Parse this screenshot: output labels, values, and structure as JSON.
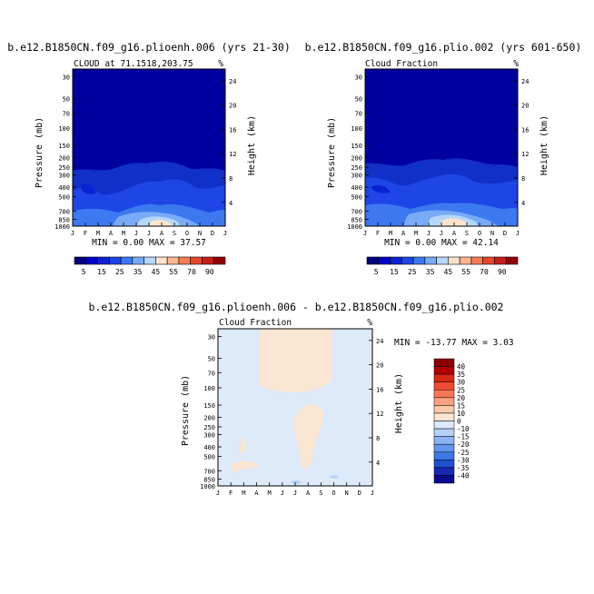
{
  "colors": {
    "scale_abs": [
      "#00007f",
      "#0000c8",
      "#0a23d2",
      "#1e46e6",
      "#3c78f0",
      "#78aaf5",
      "#b4d7fa",
      "#fde3cc",
      "#fcb88f",
      "#f87d55",
      "#e8452b",
      "#c81e14",
      "#960000"
    ],
    "scale_diff": [
      "#0a0a8c",
      "#1428b4",
      "#1e50d2",
      "#3c78e6",
      "#6496f0",
      "#8cb4f5",
      "#b4d2fa",
      "#dceafa",
      "#fae6d2",
      "#fcc8a5",
      "#fca082",
      "#f8785a",
      "#f04b32",
      "#dc2814",
      "#b40000",
      "#8c0000"
    ],
    "plot_background": "#00009f",
    "diff_background": "#dceafa"
  },
  "panel_top_left": {
    "title": "b.e12.B1850CN.f09_g16.plioenh.006 (yrs 21-30)",
    "subtitle_left": "CLOUD at 71.1518,203.75",
    "units": "%",
    "minmax": "MIN =   0.00 MAX =  37.57"
  },
  "panel_top_right": {
    "title": "b.e12.B1850CN.f09_g16.plio.002 (yrs 601-650)",
    "subtitle_left": "Cloud Fraction",
    "units": "%",
    "minmax": "MIN =   0.00 MAX =  42.14"
  },
  "panel_bottom": {
    "title": "b.e12.B1850CN.f09_g16.plioenh.006 - b.e12.B1850CN.f09_g16.plio.002",
    "subtitle_left": "Cloud Fraction",
    "units": "%",
    "minmax": "MIN = -13.77 MAX =   3.03"
  },
  "axes": {
    "ylabel_left": "Pressure (mb)",
    "ylabel_right": "Height (km)",
    "pressure_ticks": [
      "30",
      "50",
      "70",
      "100",
      "150",
      "200",
      "250",
      "300",
      "400",
      "500",
      "700",
      "850",
      "1000"
    ],
    "height_ticks": [
      "24",
      "20",
      "16",
      "12",
      "8",
      "4"
    ],
    "month_ticks": [
      "J",
      "F",
      "M",
      "A",
      "M",
      "J",
      "J",
      "A",
      "S",
      "O",
      "N",
      "D",
      "J"
    ]
  },
  "colorbar_abs_labels": [
    "5",
    "15",
    "25",
    "35",
    "45",
    "55",
    "70",
    "90"
  ],
  "colorbar_diff_labels": [
    "40",
    "35",
    "30",
    "25",
    "20",
    "15",
    "10",
    "0",
    "-10",
    "-15",
    "-20",
    "-25",
    "-30",
    "-35",
    "-40"
  ],
  "chart_data": [
    {
      "type": "heatmap",
      "title": "b.e12.B1850CN.f09_g16.plioenh.006 (yrs 21-30)",
      "subtitle": "CLOUD at 71.1518,203.75",
      "xlabel": "",
      "ylabel": "Pressure (mb)",
      "y2label": "Height (km)",
      "x": [
        "J",
        "F",
        "M",
        "A",
        "M",
        "J",
        "J",
        "A",
        "S",
        "O",
        "N",
        "D",
        "J"
      ],
      "y_pressure_mb": [
        30,
        50,
        70,
        100,
        150,
        200,
        250,
        300,
        400,
        500,
        700,
        850,
        1000
      ],
      "ylim": [
        1000,
        25
      ],
      "color_levels": [
        5,
        10,
        15,
        20,
        25,
        30,
        35,
        40,
        45,
        50,
        55,
        70,
        90
      ],
      "min": 0.0,
      "max": 37.57
    },
    {
      "type": "heatmap",
      "title": "b.e12.B1850CN.f09_g16.plio.002 (yrs 601-650)",
      "subtitle": "Cloud Fraction",
      "xlabel": "",
      "ylabel": "Pressure (mb)",
      "y2label": "Height (km)",
      "x": [
        "J",
        "F",
        "M",
        "A",
        "M",
        "J",
        "J",
        "A",
        "S",
        "O",
        "N",
        "D",
        "J"
      ],
      "y_pressure_mb": [
        30,
        50,
        70,
        100,
        150,
        200,
        250,
        300,
        400,
        500,
        700,
        850,
        1000
      ],
      "ylim": [
        1000,
        25
      ],
      "color_levels": [
        5,
        10,
        15,
        20,
        25,
        30,
        35,
        40,
        45,
        50,
        55,
        70,
        90
      ],
      "min": 0.0,
      "max": 42.14
    },
    {
      "type": "heatmap",
      "title": "b.e12.B1850CN.f09_g16.plioenh.006 - b.e12.B1850CN.f09_g16.plio.002",
      "subtitle": "Cloud Fraction",
      "xlabel": "",
      "ylabel": "Pressure (mb)",
      "y2label": "Height (km)",
      "x": [
        "J",
        "F",
        "M",
        "A",
        "M",
        "J",
        "J",
        "A",
        "S",
        "O",
        "N",
        "D",
        "J"
      ],
      "y_pressure_mb": [
        30,
        50,
        70,
        100,
        150,
        200,
        250,
        300,
        400,
        500,
        700,
        850,
        1000
      ],
      "ylim": [
        1000,
        25
      ],
      "color_levels": [
        -40,
        -35,
        -30,
        -25,
        -20,
        -15,
        -10,
        0,
        10,
        15,
        20,
        25,
        30,
        35,
        40
      ],
      "min": -13.77,
      "max": 3.03
    }
  ]
}
